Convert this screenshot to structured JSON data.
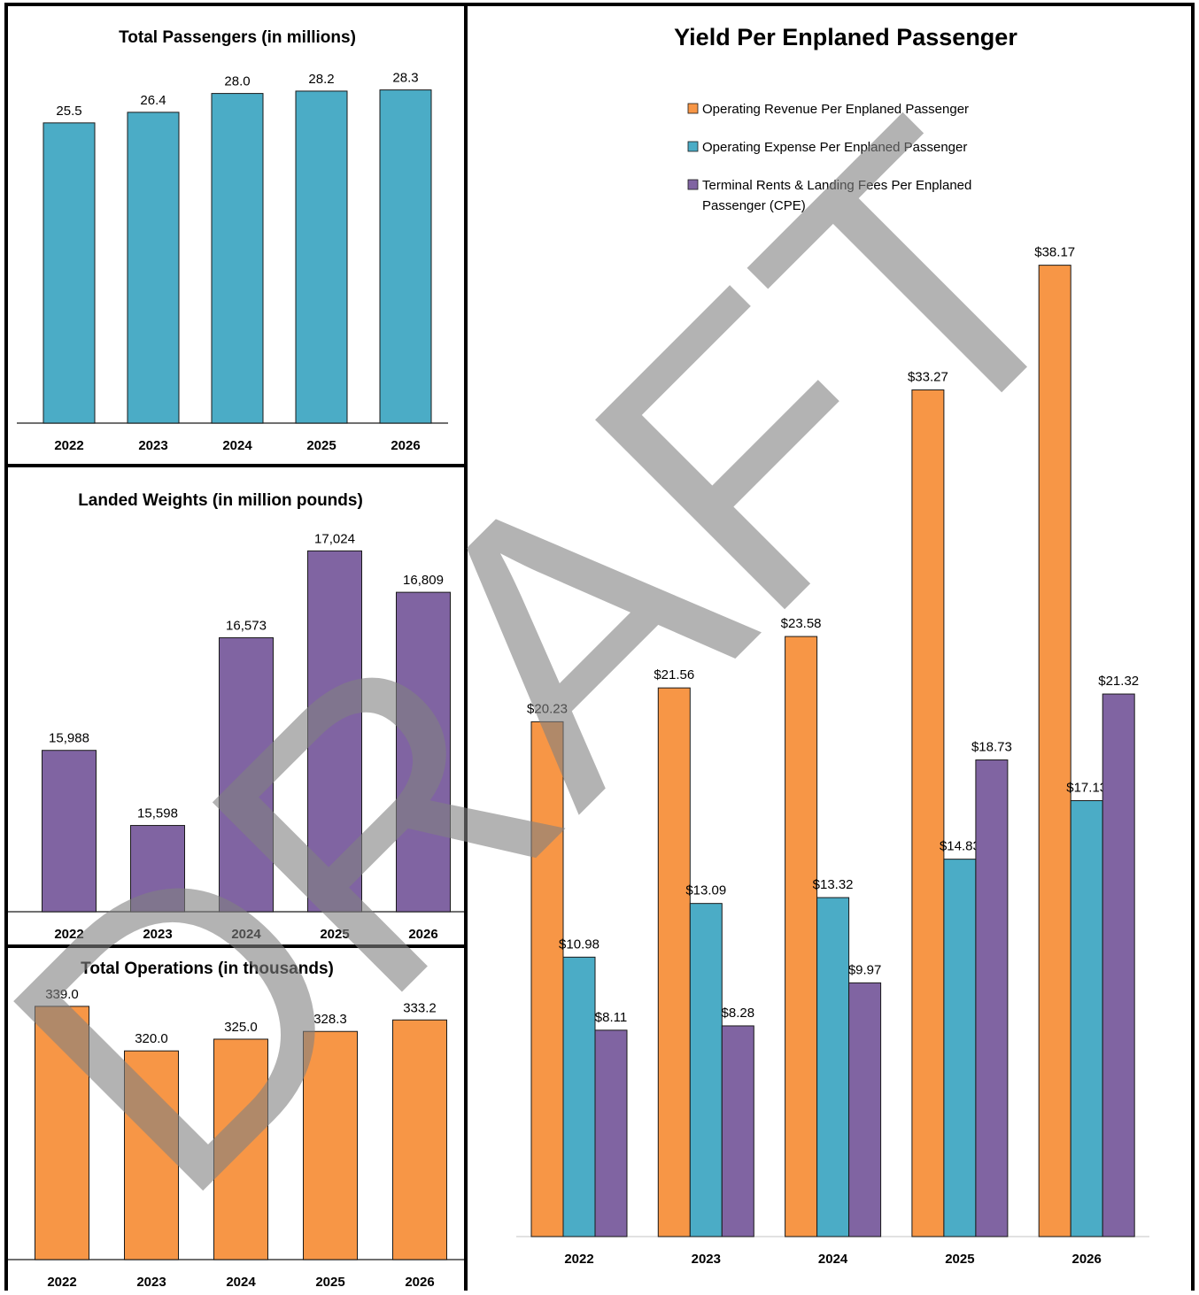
{
  "colors": {
    "passengers": "#4BACC6",
    "landed": "#8064A2",
    "operations": "#F79646",
    "revenue": "#F79646",
    "expense": "#4BACC6",
    "cpe": "#8064A2",
    "watermark": "#808080"
  },
  "watermark_text": "DRAFT",
  "chart_data": [
    {
      "id": "passengers",
      "type": "bar",
      "title": "Total Passengers (in millions)",
      "categories": [
        "2022",
        "2023",
        "2024",
        "2025",
        "2026"
      ],
      "values": [
        25.5,
        26.4,
        28.0,
        28.2,
        28.3
      ],
      "labels": [
        "25.5",
        "26.4",
        "28.0",
        "28.2",
        "28.3"
      ],
      "ylim": [
        0,
        30.3
      ]
    },
    {
      "id": "landed",
      "type": "bar",
      "title": "Landed Weights (in million pounds)",
      "categories": [
        "2022",
        "2023",
        "2024",
        "2025",
        "2026"
      ],
      "values": [
        15988,
        15598,
        16573,
        17024,
        16809
      ],
      "labels": [
        "15,988",
        "15,598",
        "16,573",
        "17,024",
        "16,809"
      ],
      "ylim": [
        15150,
        17090
      ]
    },
    {
      "id": "operations",
      "type": "bar",
      "title": "Total Operations (in thousands)",
      "categories": [
        "2022",
        "2023",
        "2024",
        "2025",
        "2026"
      ],
      "values": [
        339.0,
        320.0,
        325.0,
        328.3,
        333.2
      ],
      "labels": [
        "339.0",
        "320.0",
        "325.0",
        "328.3",
        "333.2"
      ],
      "ylim": [
        231,
        345
      ]
    },
    {
      "id": "yield",
      "type": "bar",
      "title": "Yield Per Enplaned Passenger",
      "categories": [
        "2022",
        "2023",
        "2024",
        "2025",
        "2026"
      ],
      "legend_position": "top",
      "ylim": [
        0,
        40
      ],
      "series": [
        {
          "name": "Operating Revenue Per Enplaned Passenger",
          "values": [
            20.23,
            21.56,
            23.58,
            33.27,
            38.17
          ],
          "labels": [
            "$20.23",
            "$21.56",
            "$23.58",
            "$33.27",
            "$38.17"
          ]
        },
        {
          "name": "Operating Expense Per Enplaned Passenger",
          "values": [
            10.98,
            13.09,
            13.32,
            14.83,
            17.13
          ],
          "labels": [
            "$10.98",
            "$13.09",
            "$13.32",
            "$14.83",
            "$17.13"
          ]
        },
        {
          "name": "Terminal Rents & Landing Fees Per Enplaned Passenger (CPE)",
          "name_lines": [
            "Terminal Rents & Landing Fees Per Enplaned",
            "Passenger (CPE)"
          ],
          "values": [
            8.11,
            8.28,
            9.97,
            18.73,
            21.32
          ],
          "labels": [
            "$8.11",
            "$8.28",
            "$9.97",
            "$18.73",
            "$21.32"
          ]
        }
      ]
    }
  ]
}
